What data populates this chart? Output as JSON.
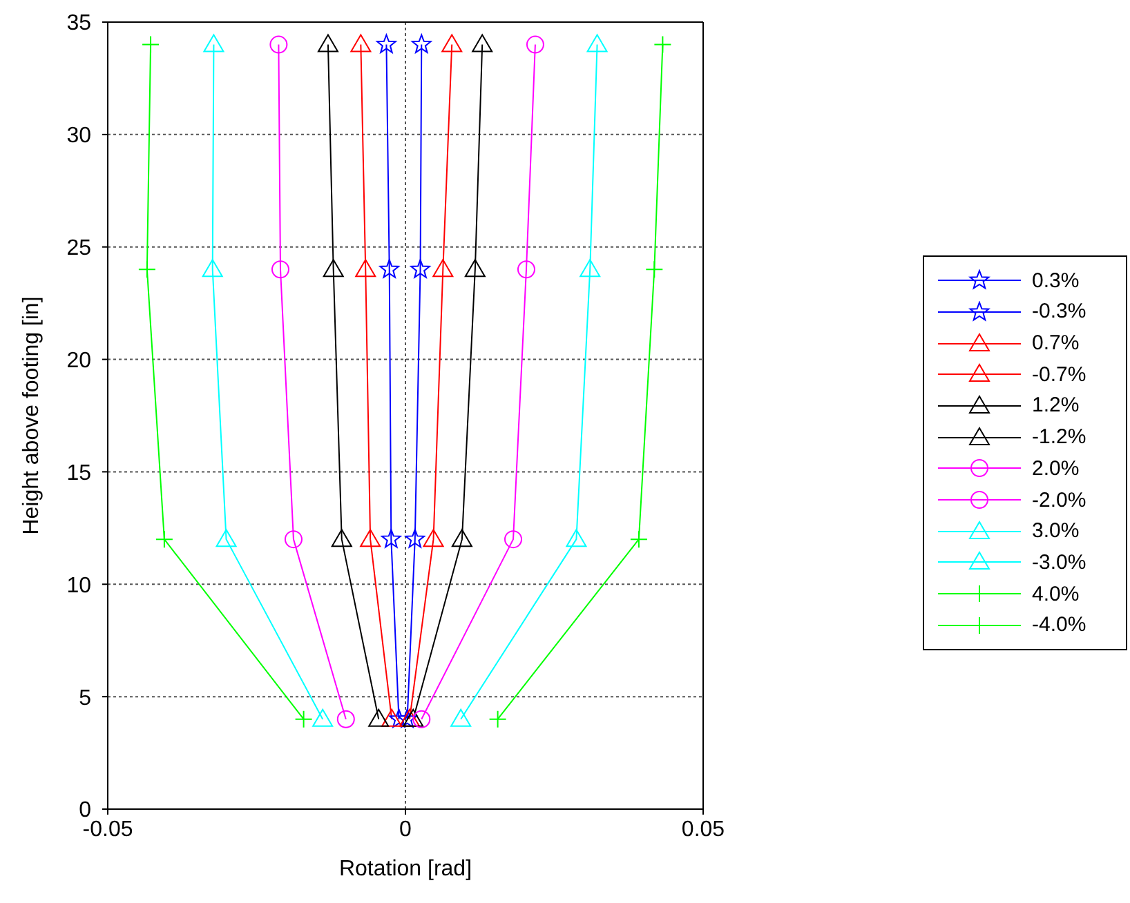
{
  "chart_data": {
    "type": "line",
    "xlabel": "Rotation [rad]",
    "ylabel": "Height above footing [in]",
    "xlim": [
      -0.05,
      0.05
    ],
    "xticks": [
      -0.05,
      0,
      0.05
    ],
    "ylim": [
      0,
      35
    ],
    "yticks": [
      0,
      5,
      10,
      15,
      20,
      25,
      30,
      35
    ],
    "grid": true,
    "legend": "right",
    "series": [
      {
        "name": "0.3%",
        "color": "#0000ff",
        "marker": "star",
        "x": [
          0.0003,
          0.0016,
          0.0025,
          0.0027
        ],
        "values": [
          4,
          12,
          24,
          34
        ]
      },
      {
        "name": "-0.3%",
        "color": "#0000ff",
        "marker": "star",
        "x": [
          -0.0011,
          -0.0024,
          -0.0027,
          -0.0032
        ],
        "values": [
          4,
          12,
          24,
          34
        ]
      },
      {
        "name": "0.7%",
        "color": "#ff0000",
        "marker": "triangle",
        "x": [
          0.0007,
          0.0047,
          0.0063,
          0.0078
        ],
        "values": [
          4,
          12,
          24,
          34
        ]
      },
      {
        "name": "-0.7%",
        "color": "#ff0000",
        "marker": "triangle",
        "x": [
          -0.0023,
          -0.0059,
          -0.0067,
          -0.0075
        ],
        "values": [
          4,
          12,
          24,
          34
        ]
      },
      {
        "name": "1.2%",
        "color": "#000000",
        "marker": "triangle",
        "x": [
          0.0013,
          0.0095,
          0.0117,
          0.0129
        ],
        "values": [
          4,
          12,
          24,
          34
        ]
      },
      {
        "name": "-1.2%",
        "color": "#000000",
        "marker": "triangle",
        "x": [
          -0.0045,
          -0.0107,
          -0.0121,
          -0.013
        ],
        "values": [
          4,
          12,
          24,
          34
        ]
      },
      {
        "name": "2.0%",
        "color": "#ff00ff",
        "marker": "circle",
        "x": [
          0.0027,
          0.0181,
          0.0203,
          0.0218
        ],
        "values": [
          4,
          12,
          24,
          34
        ]
      },
      {
        "name": "-2.0%",
        "color": "#ff00ff",
        "marker": "circle",
        "x": [
          -0.01,
          -0.0188,
          -0.021,
          -0.0213
        ],
        "values": [
          4,
          12,
          24,
          34
        ]
      },
      {
        "name": "3.0%",
        "color": "#00ffff",
        "marker": "triangle",
        "x": [
          0.0093,
          0.0287,
          0.031,
          0.0322
        ],
        "values": [
          4,
          12,
          24,
          34
        ]
      },
      {
        "name": "-3.0%",
        "color": "#00ffff",
        "marker": "triangle",
        "x": [
          -0.0139,
          -0.0301,
          -0.0324,
          -0.0322
        ],
        "values": [
          4,
          12,
          24,
          34
        ]
      },
      {
        "name": "4.0%",
        "color": "#00ff00",
        "marker": "cross",
        "x": [
          0.0155,
          0.0392,
          0.0418,
          0.0432
        ],
        "values": [
          4,
          12,
          24,
          34
        ]
      },
      {
        "name": "-4.0%",
        "color": "#00ff00",
        "marker": "cross",
        "x": [
          -0.0171,
          -0.0405,
          -0.0434,
          -0.0428
        ],
        "values": [
          4,
          12,
          24,
          34
        ]
      }
    ]
  }
}
